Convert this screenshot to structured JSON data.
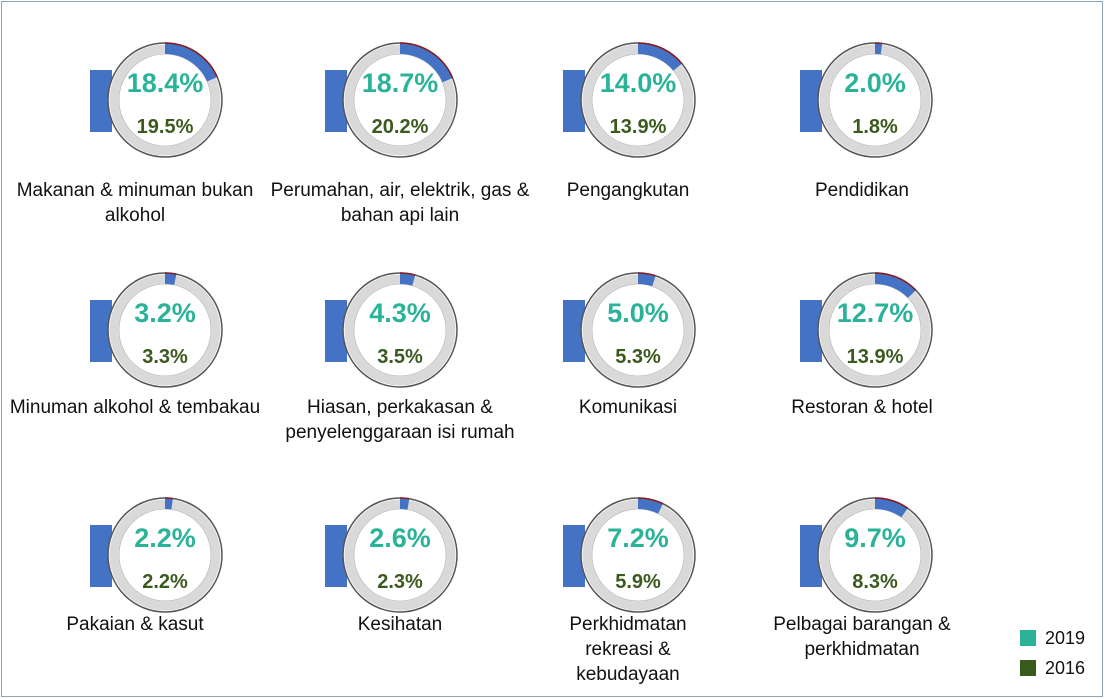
{
  "chart_data": {
    "type": "donut-grid",
    "categories": [
      "Makanan & minuman bukan alkohol",
      "Perumahan, air, elektrik, gas & bahan api lain",
      "Pengangkutan",
      "Pendidikan",
      "Minuman alkohol & tembakau",
      "Hiasan, perkakasan & penyelenggaraan isi rumah",
      "Komunikasi",
      "Restoran & hotel",
      "Pakaian & kasut",
      "Kesihatan",
      "Perkhidmatan rekreasi & kebudayaan",
      "Pelbagai barangan & perkhidmatan"
    ],
    "series": [
      {
        "name": "2019",
        "color": "#2bb39a",
        "values": [
          18.4,
          18.7,
          14.0,
          2.0,
          3.2,
          4.3,
          5.0,
          12.7,
          2.2,
          2.6,
          7.2,
          9.7
        ],
        "value_labels": [
          "18.4%",
          "18.7%",
          "14.0%",
          "2.0%",
          "3.2%",
          "4.3%",
          "5.0%",
          "12.7%",
          "2.2%",
          "2.6%",
          "7.2%",
          "9.7%"
        ]
      },
      {
        "name": "2016",
        "color": "#3b5a1e",
        "values": [
          19.5,
          20.2,
          13.9,
          1.8,
          3.3,
          3.5,
          5.3,
          13.9,
          2.2,
          2.3,
          5.9,
          8.3
        ],
        "value_labels": [
          "19.5%",
          "20.2%",
          "13.9%",
          "1.8%",
          "3.3%",
          "3.5%",
          "5.3%",
          "13.9%",
          "2.2%",
          "2.3%",
          "5.9%",
          "8.3%"
        ]
      }
    ],
    "arc_color": "#4472c4",
    "arc_edge_color": "#8b1a1a",
    "ring_color": "#d9d9d9",
    "total": 100
  }
}
